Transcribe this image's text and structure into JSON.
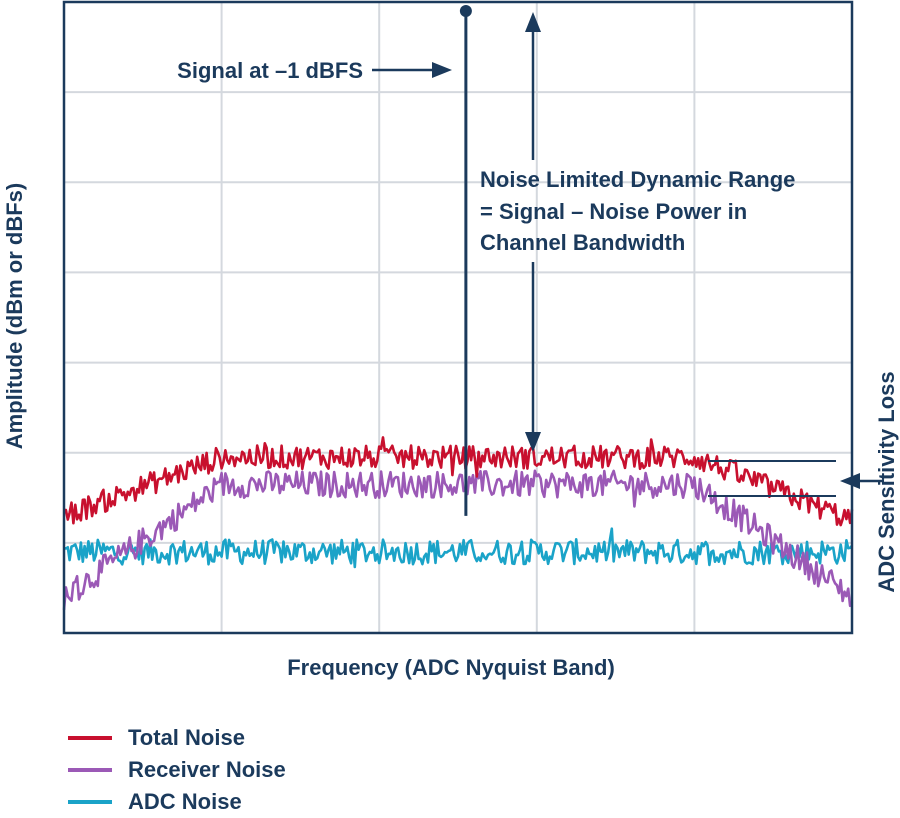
{
  "chart_data": {
    "type": "line",
    "xlabel": "Frequency (ADC Nyquist Band)",
    "ylabel": "Amplitude (dBm or dBFs)",
    "x_ticks_shown": false,
    "y_ticks_shown": false,
    "grid": true,
    "grid_x_divisions": 5,
    "grid_y_divisions": 7,
    "x": [
      0,
      1,
      2,
      3,
      4,
      5
    ],
    "series": [
      {
        "name": "Total Noise",
        "color": "#c8102e",
        "x": [
          0,
          1,
          4,
          5
        ],
        "y": [
          -84,
          -77.5,
          -77.5,
          -84.5
        ]
      },
      {
        "name": "Receiver Noise",
        "color": "#9b59b6",
        "x": [
          0,
          1,
          4,
          5
        ],
        "y": [
          -93,
          -80.5,
          -80.5,
          -93
        ]
      },
      {
        "name": "ADC Noise",
        "color": "#1aa3c8",
        "x": [
          0,
          5
        ],
        "y": [
          -88,
          -88
        ]
      }
    ],
    "ylim": [
      -97,
      -27
    ],
    "xlim": [
      0,
      5
    ],
    "signal": {
      "x": 2.55,
      "y": -28,
      "bottom": -84,
      "label": "Signal at –1 dBFS"
    },
    "dynamic_range": {
      "label_lines": [
        "Noise Limited Dynamic Range",
        "= Signal – Noise Power in",
        "Channel Bandwidth"
      ]
    },
    "sensitivity_loss": {
      "label": "ADC Sensitivity Loss"
    }
  },
  "legend": [
    {
      "label": "Total Noise",
      "color": "#c8102e"
    },
    {
      "label": "Receiver Noise",
      "color": "#9b59b6"
    },
    {
      "label": "ADC Noise",
      "color": "#1aa3c8"
    }
  ]
}
